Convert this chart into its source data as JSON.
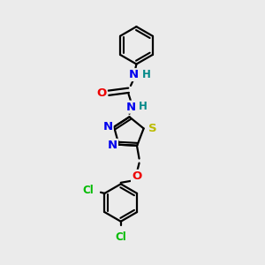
{
  "background_color": "#ebebeb",
  "bond_color": "#000000",
  "atom_colors": {
    "N": "#0000ee",
    "O": "#ee0000",
    "S": "#bbbb00",
    "Cl": "#00bb00",
    "H": "#008888",
    "C": "#000000"
  }
}
